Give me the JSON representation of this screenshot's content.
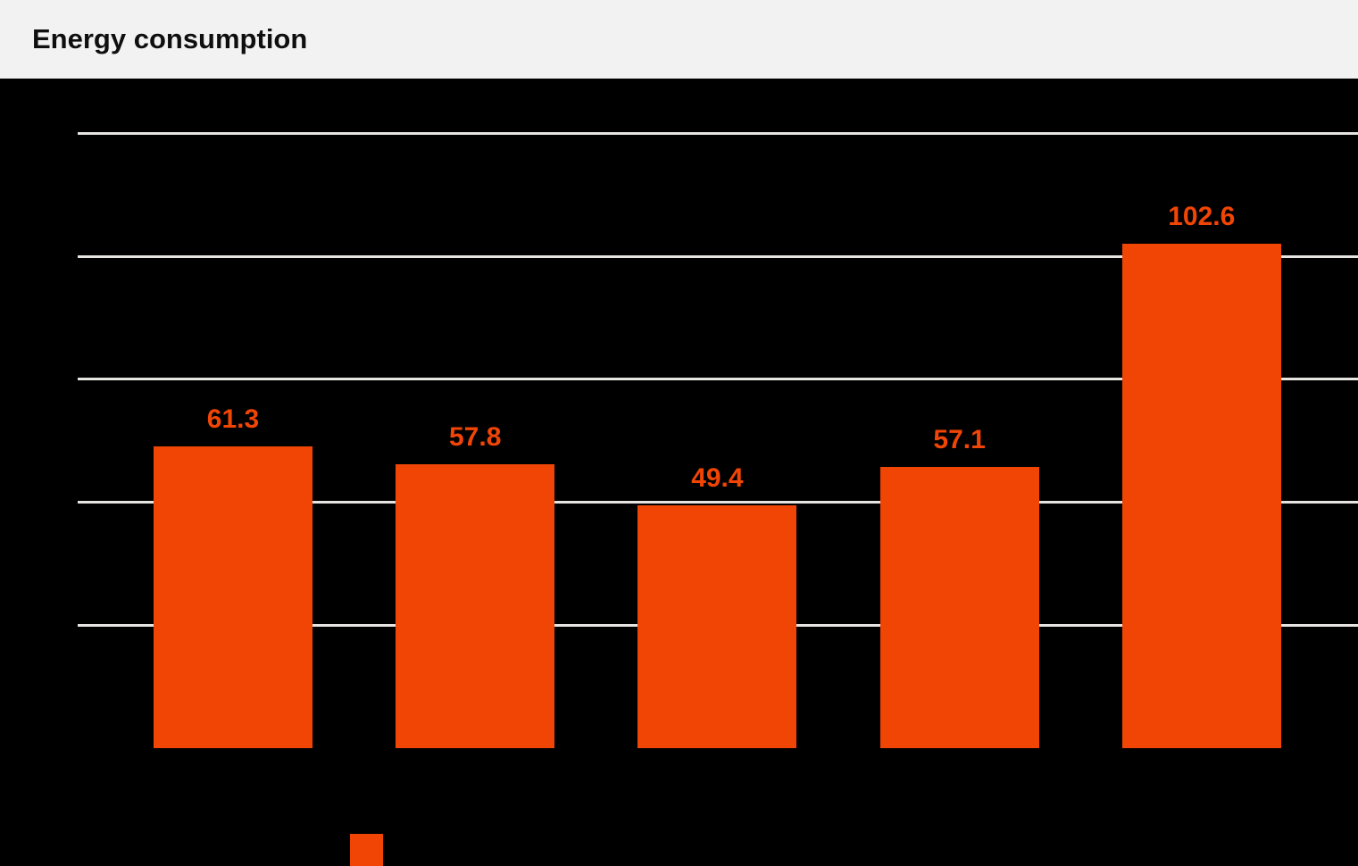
{
  "header": {
    "title": "Energy consumption"
  },
  "colors": {
    "accent_orange": "#F04505",
    "chart_background": "#000000",
    "header_background": "#F2F2F2",
    "title_text": "#0F0F0F",
    "gridline": "#E7E5E2"
  },
  "chart_data": {
    "type": "bar",
    "title": "Energy consumption",
    "values": [
      61.3,
      57.8,
      49.4,
      57.1,
      102.6
    ],
    "bar_labels": [
      "61.3",
      "57.8",
      "49.4",
      "57.1",
      "102.6"
    ],
    "series_color": "#F04505",
    "xlabel": "",
    "ylabel": "",
    "ylim": [
      0,
      125
    ],
    "gridline_values": [
      25,
      50,
      75,
      100,
      125
    ],
    "grid": true,
    "x_tick_labels_visible": false,
    "y_tick_labels_visible": false,
    "legend_position": "bottom",
    "legend_swatch_only": true
  }
}
